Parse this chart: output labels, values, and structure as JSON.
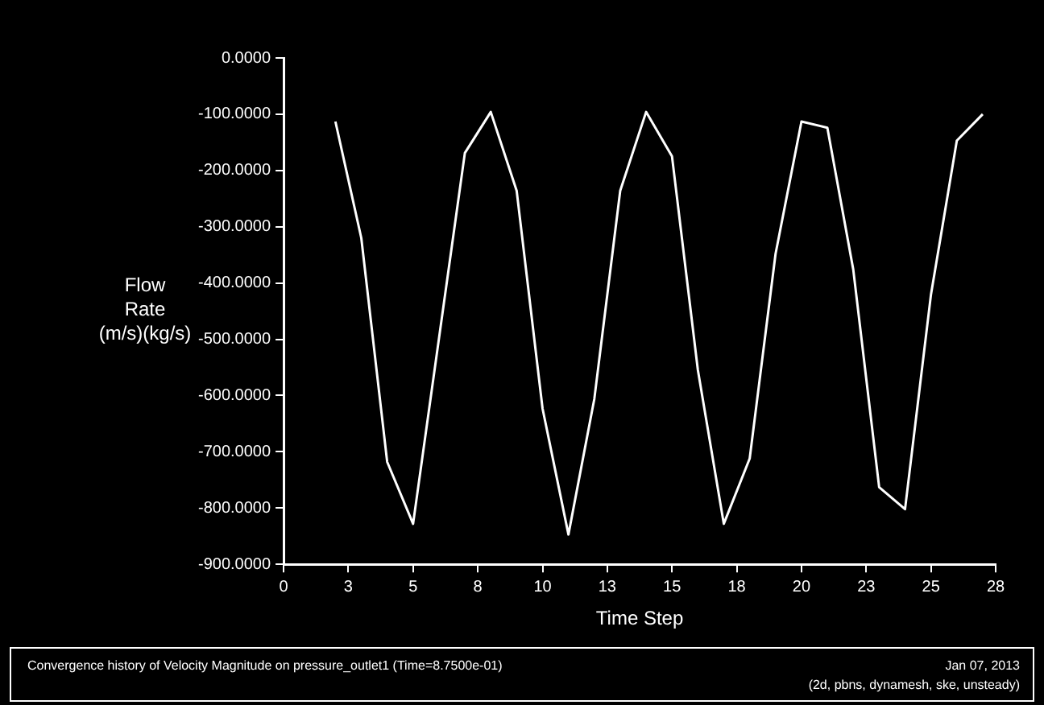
{
  "chart_data": {
    "type": "line",
    "xlabel": "Time Step",
    "ylabel": "Flow\nRate\n(m/s)(kg/s)",
    "x": [
      2,
      3,
      4,
      5,
      7,
      8,
      9,
      10,
      11,
      12,
      13,
      14,
      15,
      16,
      17,
      18,
      19,
      20,
      21,
      22,
      23,
      24,
      25,
      26,
      27
    ],
    "series": [
      {
        "color": "#ffffff",
        "values": [
          -113,
          -320,
          -718,
          -828,
          -169,
          -96,
          -236,
          -623,
          -847,
          -606,
          -236,
          -96,
          -175,
          -555,
          -828,
          -712,
          -348,
          -113,
          -124,
          -376,
          -763,
          -802,
          -421,
          -147,
          -100
        ]
      }
    ],
    "xlim": [
      0,
      27.5
    ],
    "xticks": [
      0,
      {
        "value": 2.5,
        "label": "3"
      },
      5,
      {
        "value": 7.5,
        "label": "8"
      },
      10,
      {
        "value": 12.5,
        "label": "13"
      },
      15,
      {
        "value": 17.5,
        "label": "18"
      },
      20,
      {
        "value": 22.5,
        "label": "23"
      },
      25,
      {
        "value": 27.5,
        "label": "28"
      }
    ],
    "ylim": [
      -900,
      0
    ],
    "yticks": [
      {
        "value": 0,
        "label": "0.0000"
      },
      {
        "value": -100,
        "label": "-100.0000"
      },
      {
        "value": -200,
        "label": "-200.0000"
      },
      {
        "value": -300,
        "label": "-300.0000"
      },
      {
        "value": -400,
        "label": "-400.0000"
      },
      {
        "value": -500,
        "label": "-500.0000"
      },
      {
        "value": -600,
        "label": "-600.0000"
      },
      {
        "value": -700,
        "label": "-700.0000"
      },
      {
        "value": -800,
        "label": "-800.0000"
      },
      {
        "value": -900,
        "label": "-900.0000"
      }
    ],
    "annotations": [
      "Convergence history of Velocity Magnitude on pressure_outlet1 (Time=8.7500e-01)",
      "Jan 07, 2013",
      "(2d, pbns, dynamesh, ske, unsteady)"
    ]
  }
}
